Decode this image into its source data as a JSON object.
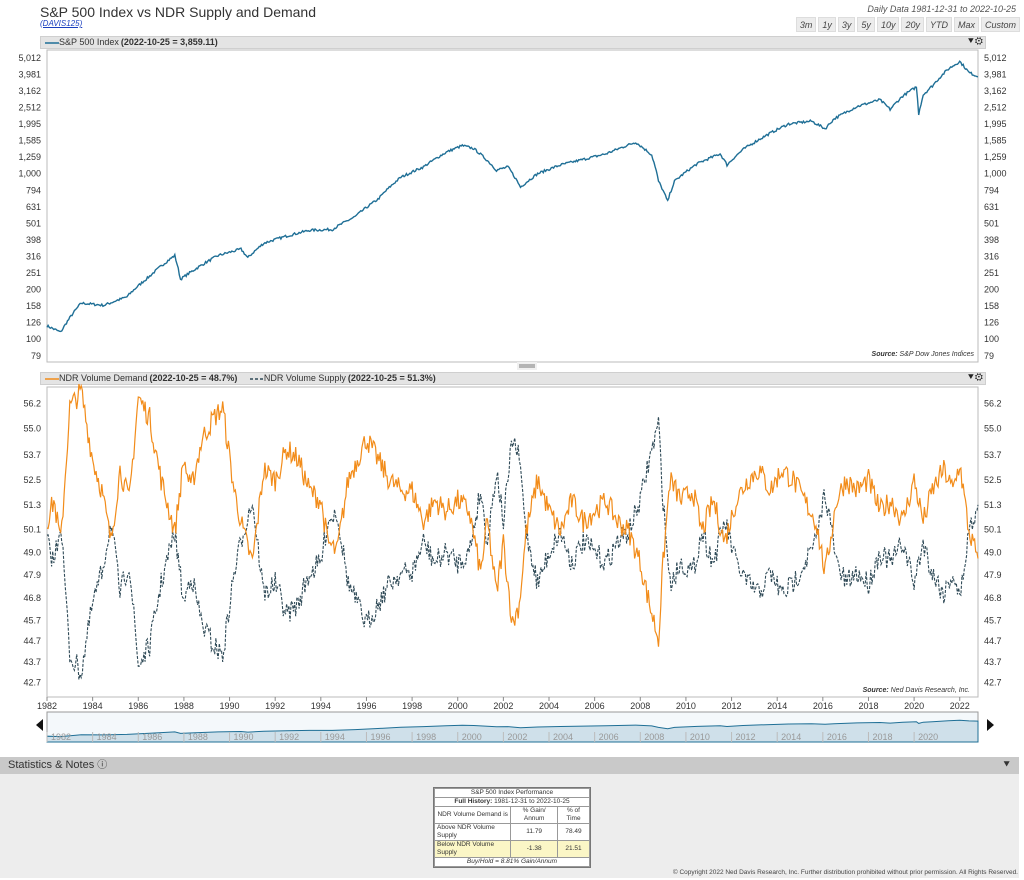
{
  "header": {
    "title": "S&P 500 Index vs NDR Supply and Demand",
    "code": "(DAVIS125)",
    "range_text": "Daily Data 1981-12-31 to 2022-10-25",
    "range_buttons": [
      "3m",
      "1y",
      "3y",
      "5y",
      "10y",
      "20y",
      "YTD",
      "Max",
      "Custom"
    ]
  },
  "colors": {
    "spx": "#1f6f96",
    "demand": "#f28c1a",
    "supply": "#2f4a57",
    "panel_bar": "#e4e4e4"
  },
  "panel_top": {
    "legend_label": "S&P 500 Index",
    "legend_value": "(2022-10-25 = 3,859.11)",
    "source_label": "Source:",
    "source_text": "S&P Dow Jones Indices"
  },
  "panel_bottom": {
    "legend_demand_label": "NDR Volume Demand",
    "legend_demand_value": "(2022-10-25 = 48.7%)",
    "legend_supply_label": "NDR Volume Supply",
    "legend_supply_value": "(2022-10-25 = 51.3%)",
    "source_label": "Source:",
    "source_text": "Ned Davis Research, Inc."
  },
  "chart_data": [
    {
      "type": "line",
      "scale": "log",
      "ylim": [
        79,
        5012
      ],
      "yticks": [
        "5,012",
        "3,981",
        "3,162",
        "2,512",
        "1,995",
        "1,585",
        "1,259",
        "1,000",
        "794",
        "631",
        "501",
        "398",
        "316",
        "251",
        "200",
        "158",
        "126",
        "100",
        "79"
      ],
      "series": [
        {
          "name": "S&P 500 Index",
          "x": [
            1982.0,
            1982.6,
            1983.5,
            1984.5,
            1985.5,
            1986.5,
            1987.6,
            1987.85,
            1988.5,
            1989.5,
            1990.5,
            1990.8,
            1991.5,
            1992.5,
            1993.5,
            1994.5,
            1995.5,
            1996.5,
            1997.5,
            1998.5,
            1999.5,
            2000.2,
            2000.7,
            2001.3,
            2001.7,
            2002.2,
            2002.75,
            2003.5,
            2004.5,
            2005.5,
            2006.5,
            2007.8,
            2008.5,
            2008.8,
            2009.2,
            2009.5,
            2010.5,
            2011.5,
            2011.8,
            2012.5,
            2013.5,
            2014.5,
            2015.5,
            2016.1,
            2016.5,
            2017.5,
            2018.5,
            2018.95,
            2019.5,
            2020.1,
            2020.2,
            2020.4,
            2020.8,
            2021.5,
            2022.0,
            2022.4,
            2022.8
          ],
          "values": [
            120,
            110,
            165,
            160,
            180,
            240,
            320,
            230,
            265,
            320,
            350,
            310,
            380,
            420,
            455,
            460,
            550,
            700,
            950,
            1100,
            1350,
            1480,
            1420,
            1200,
            1050,
            1100,
            830,
            1000,
            1130,
            1220,
            1320,
            1550,
            1300,
            900,
            680,
            900,
            1150,
            1320,
            1130,
            1400,
            1700,
            2000,
            2080,
            1870,
            2150,
            2550,
            2800,
            2450,
            2950,
            3350,
            2300,
            3000,
            3400,
            4300,
            4770,
            4100,
            3860
          ]
        }
      ]
    },
    {
      "type": "line",
      "ylim": [
        42.0,
        57.0
      ],
      "yticks": [
        "56.2",
        "55.0",
        "53.7",
        "52.5",
        "51.3",
        "50.1",
        "49.0",
        "47.9",
        "46.8",
        "45.7",
        "44.7",
        "43.7",
        "42.7"
      ],
      "x_ticks": [
        "1982",
        "1984",
        "1986",
        "1988",
        "1990",
        "1992",
        "1994",
        "1996",
        "1998",
        "2000",
        "2002",
        "2004",
        "2006",
        "2008",
        "2010",
        "2012",
        "2014",
        "2016",
        "2018",
        "2020",
        "2022"
      ],
      "series": [
        {
          "name": "NDR Volume Demand",
          "x": [
            1982.0,
            1982.3,
            1982.6,
            1983.0,
            1983.5,
            1984.0,
            1984.4,
            1984.8,
            1985.2,
            1985.6,
            1986.0,
            1986.5,
            1987.0,
            1987.6,
            1988.0,
            1988.3,
            1988.8,
            1989.3,
            1989.7,
            1990.2,
            1990.6,
            1991.0,
            1991.5,
            1992.0,
            1992.5,
            1993.0,
            1993.5,
            1994.0,
            1994.3,
            1994.7,
            1995.2,
            1995.6,
            1996.0,
            1996.5,
            1997.0,
            1997.5,
            1998.0,
            1998.5,
            1999.0,
            1999.5,
            2000.0,
            2000.5,
            2001.0,
            2001.3,
            2001.7,
            2002.0,
            2002.4,
            2002.7,
            2003.0,
            2003.5,
            2004.0,
            2004.5,
            2005.0,
            2005.5,
            2006.0,
            2006.5,
            2007.0,
            2007.5,
            2008.0,
            2008.4,
            2008.8,
            2009.0,
            2009.3,
            2009.8,
            2010.3,
            2010.7,
            2011.2,
            2011.7,
            2012.2,
            2012.7,
            2013.2,
            2013.7,
            2014.2,
            2014.7,
            2015.2,
            2015.7,
            2016.1,
            2016.6,
            2017.0,
            2017.5,
            2018.0,
            2018.5,
            2019.0,
            2019.5,
            2020.0,
            2020.4,
            2020.8,
            2021.3,
            2021.7,
            2022.0,
            2022.4,
            2022.8
          ],
          "values": [
            50.5,
            51.5,
            49.5,
            56.0,
            56.8,
            53.5,
            52.0,
            49.5,
            53.0,
            51.5,
            56.5,
            55.5,
            52.5,
            50.0,
            53.5,
            52.0,
            54.5,
            55.5,
            56.0,
            52.0,
            50.0,
            48.5,
            53.0,
            52.5,
            54.0,
            53.5,
            52.0,
            51.5,
            49.5,
            49.0,
            52.5,
            53.5,
            54.5,
            53.5,
            52.5,
            52.0,
            52.0,
            50.5,
            51.5,
            51.0,
            51.5,
            51.0,
            48.0,
            50.5,
            47.0,
            49.5,
            45.5,
            46.5,
            50.0,
            52.5,
            51.0,
            50.0,
            51.5,
            50.5,
            51.0,
            51.5,
            50.5,
            50.0,
            48.5,
            46.5,
            44.8,
            48.5,
            52.5,
            51.5,
            52.0,
            50.0,
            51.5,
            49.5,
            51.5,
            52.5,
            53.0,
            52.0,
            53.0,
            52.5,
            51.5,
            50.5,
            48.0,
            51.5,
            52.5,
            52.0,
            52.5,
            51.0,
            51.5,
            50.5,
            52.5,
            50.5,
            52.0,
            53.0,
            52.0,
            53.3,
            50.0,
            48.7
          ]
        },
        {
          "name": "NDR Volume Supply",
          "x": [
            1982.0,
            1982.3,
            1982.6,
            1983.0,
            1983.5,
            1984.0,
            1984.4,
            1984.8,
            1985.2,
            1985.6,
            1986.0,
            1986.5,
            1987.0,
            1987.6,
            1988.0,
            1988.3,
            1988.8,
            1989.3,
            1989.7,
            1990.2,
            1990.6,
            1991.0,
            1991.5,
            1992.0,
            1992.5,
            1993.0,
            1993.5,
            1994.0,
            1994.3,
            1994.7,
            1995.2,
            1995.6,
            1996.0,
            1996.5,
            1997.0,
            1997.5,
            1998.0,
            1998.5,
            1999.0,
            1999.5,
            2000.0,
            2000.5,
            2001.0,
            2001.3,
            2001.7,
            2002.0,
            2002.4,
            2002.7,
            2003.0,
            2003.5,
            2004.0,
            2004.5,
            2005.0,
            2005.5,
            2006.0,
            2006.5,
            2007.0,
            2007.5,
            2008.0,
            2008.4,
            2008.8,
            2009.0,
            2009.3,
            2009.8,
            2010.3,
            2010.7,
            2011.2,
            2011.7,
            2012.2,
            2012.7,
            2013.2,
            2013.7,
            2014.2,
            2014.7,
            2015.2,
            2015.7,
            2016.1,
            2016.6,
            2017.0,
            2017.5,
            2018.0,
            2018.5,
            2019.0,
            2019.5,
            2020.0,
            2020.4,
            2020.8,
            2021.3,
            2021.7,
            2022.0,
            2022.4,
            2022.8
          ],
          "values": [
            49.5,
            48.5,
            50.5,
            44.0,
            43.2,
            46.5,
            48.0,
            50.5,
            47.0,
            48.5,
            43.5,
            44.5,
            47.5,
            50.0,
            46.5,
            48.0,
            45.5,
            44.5,
            44.0,
            48.0,
            50.0,
            51.5,
            47.0,
            47.5,
            46.0,
            46.5,
            48.0,
            48.5,
            50.5,
            51.0,
            47.5,
            46.5,
            45.5,
            46.5,
            47.5,
            48.0,
            48.0,
            49.5,
            48.5,
            49.0,
            48.5,
            49.0,
            52.0,
            49.5,
            53.0,
            50.5,
            54.5,
            53.5,
            50.0,
            47.5,
            49.0,
            50.0,
            48.5,
            49.5,
            49.0,
            48.5,
            49.5,
            50.0,
            51.5,
            53.5,
            55.2,
            51.5,
            47.5,
            48.5,
            48.0,
            50.0,
            48.5,
            50.5,
            48.5,
            47.5,
            47.0,
            48.0,
            47.0,
            47.5,
            48.5,
            49.5,
            52.0,
            48.5,
            47.5,
            48.0,
            47.5,
            49.0,
            48.5,
            49.5,
            47.5,
            49.5,
            48.0,
            47.0,
            48.0,
            46.7,
            50.0,
            51.3
          ]
        }
      ]
    }
  ],
  "navigator": {
    "labels": [
      "1982",
      "1984",
      "1986",
      "1988",
      "1990",
      "1992",
      "1994",
      "1996",
      "1998",
      "2000",
      "2002",
      "2004",
      "2006",
      "2008",
      "2010",
      "2012",
      "2014",
      "2016",
      "2018",
      "2020"
    ]
  },
  "stats": {
    "title": "Statistics & Notes",
    "table_title": "S&P 500 Index Performance",
    "full_history_label": "Full History:",
    "full_history_value": "1981-12-31 to 2022-10-25",
    "col_condition": "NDR Volume Demand is",
    "col_gain": "% Gain/ Annum",
    "col_time": "% of Time",
    "rows": [
      {
        "label": "Above NDR Volume Supply",
        "gain": "11.79",
        "time": "78.49"
      },
      {
        "label": "Below NDR Volume Supply",
        "gain": "-1.38",
        "time": "21.51"
      }
    ],
    "buy_hold": "Buy/Hold = 8.81% Gain/Annum"
  },
  "copyright": "© Copyright 2022 Ned Davis Research, Inc. Further distribution prohibited without prior permission. All Rights Reserved."
}
